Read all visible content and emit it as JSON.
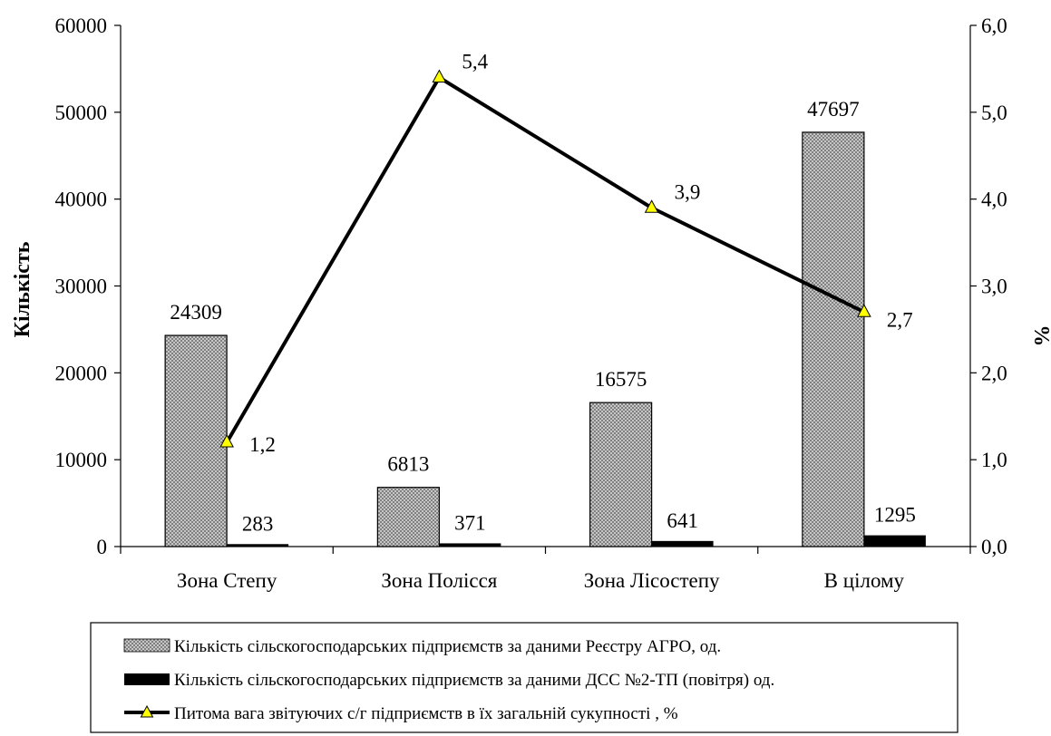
{
  "chart_data": {
    "type": "bar",
    "title": "",
    "categories": [
      "Зона Степу",
      "Зона Полісся",
      "Зона Лісостепу",
      "В цілому"
    ],
    "ylabel": "Кількість",
    "y2label": "%",
    "ylim": [
      0,
      60000
    ],
    "y2lim": [
      0,
      6.0
    ],
    "yticks": [
      "0",
      "10000",
      "20000",
      "30000",
      "40000",
      "50000",
      "60000"
    ],
    "y2ticks": [
      "0,0",
      "1,0",
      "2,0",
      "3,0",
      "4,0",
      "5,0",
      "6,0"
    ],
    "grid": false,
    "legend_position": "bottom",
    "series": [
      {
        "name": "Кількість сільскогосподарських підприємств за даними Реєстру АГРО, од.",
        "kind": "bar",
        "axis": "left",
        "color": "#c8c8c8",
        "fill": "crosshatch",
        "values": [
          24309,
          6813,
          16575,
          47697
        ],
        "labels": [
          "24309",
          "6813",
          "16575",
          "47697"
        ]
      },
      {
        "name": "Кількість сільскогосподарських підприємств за даними ДСС №2-ТП (повітря) од.",
        "kind": "bar",
        "axis": "left",
        "color": "#000000",
        "fill": "solid",
        "values": [
          283,
          371,
          641,
          1295
        ],
        "labels": [
          "283",
          "371",
          "641",
          "1295"
        ]
      },
      {
        "name": "Питома вага звітуючих с/г підприємств в їх загальній сукупності , %",
        "kind": "line",
        "axis": "right",
        "color": "#000000",
        "marker": "triangle",
        "marker_color": "#ffff00",
        "values": [
          1.2,
          5.4,
          3.9,
          2.7
        ],
        "labels": [
          "1,2",
          "5,4",
          "3,9",
          "2,7"
        ]
      }
    ]
  }
}
